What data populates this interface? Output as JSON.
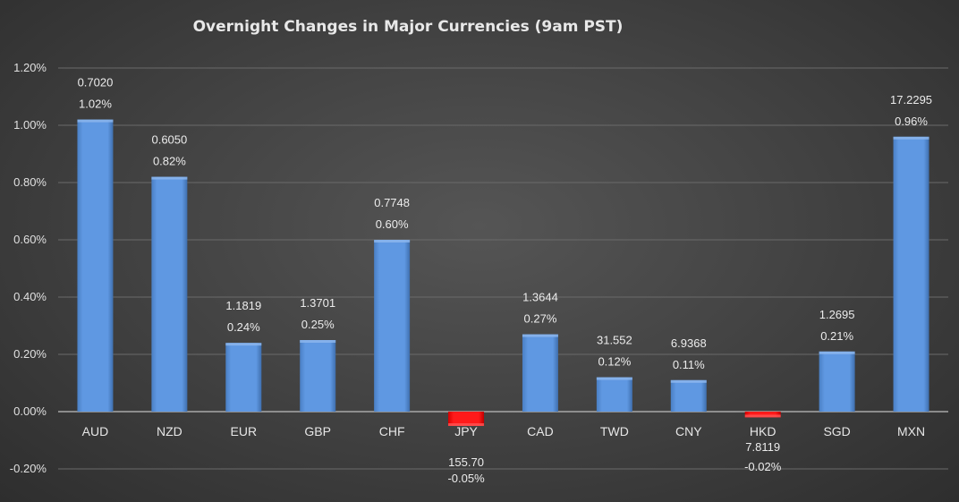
{
  "chart_data": {
    "type": "bar",
    "title": "Overnight Changes in Major Currencies (9am PST)",
    "xlabel": "",
    "ylabel": "",
    "ylim": [
      -0.2,
      1.2
    ],
    "yticks": [
      "-0.20%",
      "0.00%",
      "0.20%",
      "0.40%",
      "0.60%",
      "0.80%",
      "1.00%",
      "1.20%"
    ],
    "ytick_values": [
      -0.2,
      0,
      0.2,
      0.4,
      0.6,
      0.8,
      1.0,
      1.2
    ],
    "grid": true,
    "categories": [
      "AUD",
      "NZD",
      "EUR",
      "GBP",
      "CHF",
      "JPY",
      "CAD",
      "TWD",
      "CNY",
      "HKD",
      "SGD",
      "MXN"
    ],
    "values": [
      1.02,
      0.82,
      0.24,
      0.25,
      0.6,
      -0.05,
      0.27,
      0.12,
      0.11,
      -0.02,
      0.21,
      0.96
    ],
    "percent_labels": [
      "1.02%",
      "0.82%",
      "0.24%",
      "0.25%",
      "0.60%",
      "-0.05%",
      "0.27%",
      "0.12%",
      "0.11%",
      "-0.02%",
      "0.21%",
      "0.96%"
    ],
    "rates": [
      "0.7020",
      "0.6050",
      "1.1819",
      "1.3701",
      "0.7748",
      "155.70",
      "1.3644",
      "31.552",
      "6.9368",
      "7.8119",
      "1.2695",
      "17.2295"
    ],
    "colors": {
      "positive": "#5b93dc",
      "negative": "#ff1a1a",
      "grid": "#6a6a6a",
      "zero": "#a8a8a8"
    }
  }
}
